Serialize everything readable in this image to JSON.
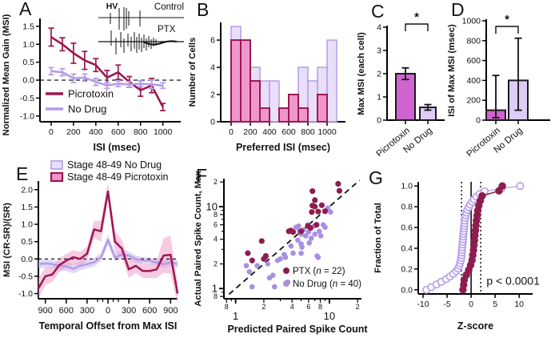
{
  "figure": {
    "panels": [
      {
        "letter": "A"
      },
      {
        "letter": "B"
      },
      {
        "letter": "C"
      },
      {
        "letter": "D"
      },
      {
        "letter": "E"
      },
      {
        "letter": "F"
      },
      {
        "letter": "G"
      }
    ]
  },
  "colors": {
    "picrotoxin": "#9b1850",
    "no_drug": "#b49ce8",
    "hist_picrotoxin_fill": "#ef97cc",
    "hist_no_drug_fill": "#e9dff8",
    "bar_picrotoxin_fill": "#cf63d0",
    "bar_no_drug_fill": "#ddccf6",
    "band_picrotoxin": "#f19fcd",
    "band_no_drug": "#c8b6ec",
    "scatter_ptx": "#8e1c4e",
    "scatter_no_drug": "#a98fe2",
    "axis": "#000000",
    "trace": "#111111"
  },
  "chart_data": [
    {
      "panel": "A",
      "type": "line",
      "xlabel": "ISI (msec)",
      "ylabel": "Normalized Mean Gain (MSI)",
      "x": [
        0,
        100,
        200,
        300,
        400,
        500,
        600,
        700,
        800,
        900,
        1000
      ],
      "xticks": [
        0,
        200,
        400,
        600,
        800,
        1000
      ],
      "yticks": [
        1.5,
        1.0,
        0.5,
        0.0,
        -0.5,
        -1.0
      ],
      "xlim": [
        -100,
        1160
      ],
      "ylim": [
        -1.16,
        1.72
      ],
      "zero_line": true,
      "series": [
        {
          "name": "Picrotoxin",
          "color": "picrotoxin",
          "values": [
            1.2,
            1.0,
            0.75,
            0.55,
            0.42,
            0.07,
            0.22,
            -0.05,
            -0.28,
            -0.15,
            -0.75
          ],
          "errors": [
            0.25,
            0.18,
            0.28,
            0.25,
            0.18,
            0.2,
            0.2,
            0.15,
            0.17,
            0.2,
            0.1
          ]
        },
        {
          "name": "No Drug",
          "color": "no_drug",
          "values": [
            0.25,
            0.22,
            0.05,
            0.07,
            -0.05,
            -0.15,
            -0.1,
            -0.12,
            -0.1,
            -0.12,
            -0.15
          ],
          "errors": [
            0.1,
            0.1,
            0.12,
            0.1,
            0.1,
            0.08,
            0.08,
            0.08,
            0.08,
            0.12,
            0.08
          ]
        }
      ],
      "inset": {
        "hv": "HV",
        "control": "Control",
        "ptx": "PTX"
      }
    },
    {
      "panel": "B",
      "type": "histogram",
      "xlabel": "Preferred ISI (msec)",
      "ylabel": "Number of Cells",
      "bin_start": 0,
      "bin_width": 100,
      "xticks": [
        0,
        200,
        400,
        600,
        800,
        1000
      ],
      "yticks": [
        0,
        2,
        4,
        6
      ],
      "series": [
        {
          "name": "No Drug",
          "fill": "hist_no_drug_fill",
          "edge": "no_drug",
          "counts": [
            7,
            6,
            4,
            3,
            3,
            0,
            0,
            4,
            3,
            4,
            6
          ]
        },
        {
          "name": "Picrotoxin",
          "fill": "hist_picrotoxin_fill",
          "edge": "picrotoxin",
          "counts": [
            6,
            6,
            3,
            1,
            0,
            1,
            2,
            1,
            0,
            2,
            0
          ]
        }
      ]
    },
    {
      "panel": "C",
      "type": "bar",
      "ylabel": "Max MSI (each cell)",
      "yticks": [
        0,
        1,
        2,
        3,
        4
      ],
      "ylim": [
        0,
        4
      ],
      "categories": [
        "Picrotoxin",
        "No Drug"
      ],
      "values": [
        2.0,
        0.55
      ],
      "errors": [
        0.25,
        0.12
      ],
      "fills": [
        "bar_picrotoxin_fill",
        "bar_no_drug_fill"
      ],
      "significance": "*"
    },
    {
      "panel": "D",
      "type": "bar",
      "ylabel": "ISI of Max MSI (msec)",
      "yticks": [
        0,
        200,
        400,
        600,
        800,
        1000
      ],
      "ylim": [
        0,
        1000
      ],
      "categories": [
        "Picrotoxin",
        "No Drug"
      ],
      "values": [
        100,
        400
      ],
      "error_low": [
        75,
        300
      ],
      "error_high": [
        350,
        425
      ],
      "fills": [
        "bar_picrotoxin_fill",
        "bar_no_drug_fill"
      ],
      "significance": "*"
    },
    {
      "panel": "E",
      "type": "band-line",
      "xlabel": "Temporal Offset from Max ISI",
      "ylabel": "MSI (CR-SR)/(SR)",
      "x": [
        -1000,
        -900,
        -800,
        -700,
        -600,
        -500,
        -400,
        -300,
        -200,
        -100,
        0,
        100,
        200,
        300,
        400,
        500,
        600,
        700,
        800,
        900,
        1000
      ],
      "xticks": [
        -900,
        -600,
        -300,
        0,
        300,
        600,
        900
      ],
      "xtick_labels": [
        "900",
        "600",
        "300",
        "0",
        "300",
        "600",
        "900"
      ],
      "minor_xticks": [
        -150,
        -75,
        75,
        150
      ],
      "yticks": [
        2.0,
        1.5,
        1.0,
        0.5,
        0.0,
        -0.5,
        -1.0
      ],
      "ylim": [
        -1.15,
        2.25
      ],
      "zero_line": true,
      "series": [
        {
          "name": "Stage 48-49 No Drug",
          "color": "no_drug",
          "band": "band_no_drug",
          "values": [
            -0.15,
            -0.13,
            -0.15,
            -0.2,
            -0.22,
            -0.28,
            -0.2,
            -0.15,
            -0.1,
            0.05,
            0.55,
            0.05,
            0.12,
            0.1,
            0.0,
            -0.05,
            -0.05,
            -0.1,
            -0.15,
            -0.1,
            -0.15
          ],
          "band_width": [
            0.12,
            0.12,
            0.12,
            0.13,
            0.13,
            0.14,
            0.13,
            0.12,
            0.12,
            0.12,
            0.15,
            0.12,
            0.12,
            0.12,
            0.1,
            0.1,
            0.1,
            0.1,
            0.12,
            0.12,
            0.12
          ]
        },
        {
          "name": "Stage 48-49 Picrotoxin",
          "color": "picrotoxin",
          "band": "band_picrotoxin",
          "values": [
            -0.85,
            -0.5,
            -0.45,
            -0.18,
            -0.05,
            0.05,
            0.0,
            0.15,
            0.85,
            0.8,
            1.95,
            0.5,
            0.3,
            -0.3,
            -0.2,
            -0.35,
            -0.35,
            -0.3,
            0.1,
            0.12,
            -1.0
          ],
          "band_width": [
            0.3,
            0.25,
            0.22,
            0.2,
            0.2,
            0.2,
            0.2,
            0.2,
            0.25,
            0.3,
            0.25,
            0.3,
            0.25,
            0.25,
            0.2,
            0.2,
            0.2,
            0.25,
            0.5,
            0.55,
            0.3
          ]
        }
      ]
    },
    {
      "panel": "F",
      "type": "scatter-log",
      "xlabel": "Predicted Paired Spike Count",
      "ylabel": "Actual Paired Spike Count, Max",
      "lim": [
        0.75,
        22
      ],
      "ticks": [
        0.8,
        0.9,
        1,
        2,
        3,
        4,
        5,
        6,
        7,
        8,
        9,
        10,
        20
      ],
      "labeled_ticks": [
        0.8,
        1,
        2,
        4,
        6,
        8,
        10,
        20
      ],
      "tick_labels": [
        "8",
        "1",
        "2",
        "4",
        "6",
        "8",
        "10",
        "2"
      ],
      "major_ticks": [
        1,
        10
      ],
      "identity_line": true,
      "series": [
        {
          "name": "PTX (n = 22)",
          "color": "scatter_ptx",
          "points": [
            [
              1.35,
              2.7
            ],
            [
              1.5,
              2.2
            ],
            [
              1.9,
              3.8
            ],
            [
              2.0,
              2.3
            ],
            [
              2.1,
              2.5
            ],
            [
              3.7,
              5.0
            ],
            [
              3.9,
              5.1
            ],
            [
              4.1,
              4.9
            ],
            [
              5.0,
              5.0
            ],
            [
              5.9,
              5.8
            ],
            [
              6.3,
              5.5
            ],
            [
              6.5,
              8.6
            ],
            [
              6.6,
              10.3
            ],
            [
              6.6,
              15.5
            ],
            [
              7.0,
              12.0
            ],
            [
              7.0,
              10.0
            ],
            [
              7.3,
              6.0
            ],
            [
              7.6,
              8.7
            ],
            [
              8.3,
              10.4
            ],
            [
              9.0,
              8.8
            ],
            [
              12.4,
              19.0
            ],
            [
              12.8,
              15.6
            ]
          ]
        },
        {
          "name": "No Drug (n = 40)",
          "color": "scatter_no_drug",
          "points": [
            [
              1.3,
              1.9
            ],
            [
              1.4,
              1.6
            ],
            [
              1.5,
              1.05
            ],
            [
              1.7,
              1.9
            ],
            [
              2.1,
              2.4
            ],
            [
              2.2,
              2.0
            ],
            [
              2.3,
              1.35
            ],
            [
              2.5,
              1.45
            ],
            [
              2.6,
              1.05
            ],
            [
              2.8,
              2.2
            ],
            [
              3.0,
              2.3
            ],
            [
              3.3,
              2.6
            ],
            [
              3.4,
              2.4
            ],
            [
              3.6,
              1.2
            ],
            [
              3.9,
              3.3
            ],
            [
              4.1,
              2.7
            ],
            [
              4.4,
              5.6
            ],
            [
              4.6,
              3.9
            ],
            [
              4.7,
              5.8
            ],
            [
              4.8,
              5.0
            ],
            [
              5.0,
              4.6
            ],
            [
              5.0,
              3.5
            ],
            [
              5.1,
              3.2
            ],
            [
              5.0,
              2.7
            ],
            [
              5.3,
              5.2
            ],
            [
              5.6,
              4.4
            ],
            [
              5.9,
              6.0
            ],
            [
              6.0,
              4.9
            ],
            [
              6.1,
              3.6
            ],
            [
              6.4,
              4.1
            ],
            [
              6.9,
              5.8
            ],
            [
              7.0,
              4.6
            ],
            [
              7.4,
              2.5
            ],
            [
              7.6,
              2.4
            ],
            [
              7.8,
              5.0
            ],
            [
              8.1,
              4.4
            ],
            [
              8.6,
              6.0
            ],
            [
              9.0,
              5.6
            ],
            [
              9.6,
              9.6
            ],
            [
              10.3,
              8.6
            ]
          ]
        }
      ]
    },
    {
      "panel": "G",
      "type": "cdf",
      "xlabel": "Z-score",
      "ylabel": "Fraction of Total",
      "xticks": [
        -10,
        -5,
        0,
        5,
        10
      ],
      "yticks": [
        0.0,
        0.2,
        0.4,
        0.6,
        0.8,
        1.0
      ],
      "xlim": [
        -11,
        12.8
      ],
      "ylim": [
        -0.04,
        1.04
      ],
      "vline_solid": 0,
      "vlines_dotted": [
        -2,
        2
      ],
      "annotation": "p < 0.0001",
      "series": [
        {
          "name": "No Drug",
          "color": "no_drug",
          "style": "open",
          "values": [
            -9.3,
            -8.3,
            -7.2,
            -6.2,
            -5.2,
            -4.4,
            -3.7,
            -3.1,
            -2.7,
            -2.45,
            -2.3,
            -2.15,
            -2.05,
            -2.0,
            -1.95,
            -1.9,
            -1.85,
            -1.8,
            -1.75,
            -1.7,
            -1.65,
            -1.6,
            -1.55,
            -1.5,
            -1.45,
            -1.4,
            -1.35,
            -1.25,
            -1.15,
            -1.0,
            -0.8,
            -0.5,
            -0.2,
            0.2,
            0.6,
            1.1,
            1.8,
            2.8,
            6.3,
            10.2
          ]
        },
        {
          "name": "PTX",
          "color": "scatter_ptx",
          "style": "filled",
          "values": [
            -1.7,
            -1.55,
            -1.45,
            -1.0,
            -0.5,
            -0.1,
            0.2,
            0.35,
            0.5,
            0.6,
            0.7,
            0.8,
            0.9,
            1.0,
            1.1,
            1.25,
            1.4,
            1.6,
            1.9,
            2.3,
            5.8,
            6.5
          ]
        }
      ]
    }
  ]
}
